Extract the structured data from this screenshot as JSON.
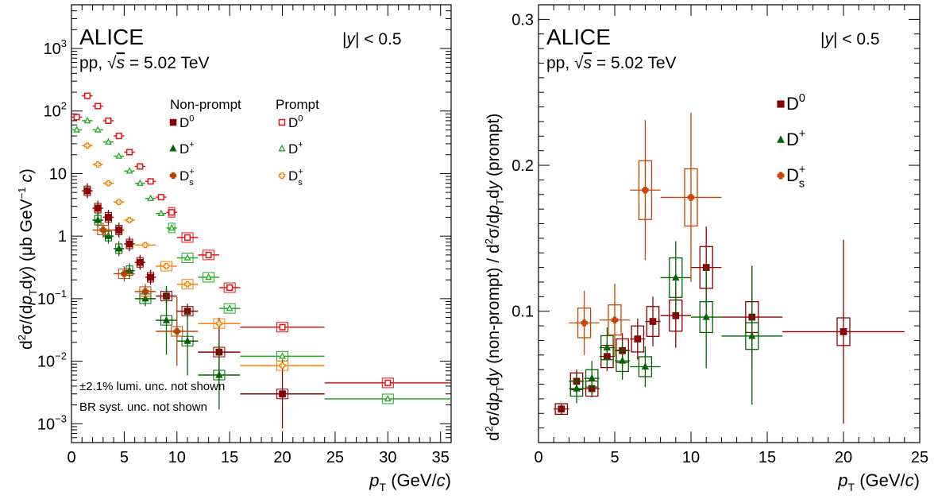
{
  "chart_data": [
    {
      "type": "scatter",
      "log_y": true,
      "xlim": [
        0,
        36
      ],
      "ylim": [
        0.0005,
        5000
      ],
      "x_ticks": [
        0,
        5,
        10,
        15,
        20,
        25,
        30,
        35
      ],
      "y_ticks": [
        {
          "v": 0.001,
          "base": "10",
          "exp": "−3"
        },
        {
          "v": 0.01,
          "base": "10",
          "exp": "−2"
        },
        {
          "v": 0.1,
          "base": "10",
          "exp": "−1"
        },
        {
          "v": 1,
          "base": "1",
          "exp": ""
        },
        {
          "v": 10,
          "base": "10",
          "exp": ""
        },
        {
          "v": 100,
          "base": "10",
          "exp": "2"
        },
        {
          "v": 1000,
          "base": "10",
          "exp": "3"
        }
      ],
      "experiment": "ALICE",
      "system": "pp, √s = 5.02 TeV",
      "rapidity": "|y| < 0.5",
      "legend_headers": [
        "Non-prompt",
        "Prompt"
      ],
      "notes": [
        "±2.1% lumi. unc. not shown",
        "BR syst. unc. not shown"
      ],
      "series": [
        {
          "name": "D0",
          "prompt": false,
          "color": "#8b0000",
          "marker": "square-filled",
          "points": [
            {
              "x": 1.5,
              "y": 5.3,
              "xerr": 0.5
            },
            {
              "x": 2.5,
              "y": 2.8,
              "xerr": 0.5
            },
            {
              "x": 3.5,
              "y": 2.0,
              "xerr": 0.5
            },
            {
              "x": 4.5,
              "y": 1.25,
              "xerr": 0.5
            },
            {
              "x": 5.5,
              "y": 0.75,
              "xerr": 0.5
            },
            {
              "x": 6.5,
              "y": 0.38,
              "xerr": 0.5
            },
            {
              "x": 7.5,
              "y": 0.22,
              "xerr": 0.5
            },
            {
              "x": 9,
              "y": 0.11,
              "xerr": 1
            },
            {
              "x": 11,
              "y": 0.063,
              "xerr": 1
            },
            {
              "x": 14,
              "y": 0.014,
              "xerr": 2
            },
            {
              "x": 20,
              "y": 0.003,
              "xerr": 4
            }
          ]
        },
        {
          "name": "D+",
          "prompt": false,
          "color": "#006400",
          "marker": "triangle-filled",
          "points": [
            {
              "x": 2.5,
              "y": 1.8,
              "xerr": 0.5
            },
            {
              "x": 3.5,
              "y": 1.0,
              "xerr": 0.5
            },
            {
              "x": 4.5,
              "y": 0.63,
              "xerr": 0.5
            },
            {
              "x": 5.5,
              "y": 0.28,
              "xerr": 0.5
            },
            {
              "x": 7,
              "y": 0.1,
              "xerr": 1
            },
            {
              "x": 9,
              "y": 0.045,
              "xerr": 1
            },
            {
              "x": 11,
              "y": 0.021,
              "xerr": 1
            },
            {
              "x": 14,
              "y": 0.006,
              "xerr": 2
            }
          ]
        },
        {
          "name": "Ds+",
          "prompt": false,
          "color": "#b34700",
          "marker": "cross-filled",
          "points": [
            {
              "x": 3,
              "y": 1.25,
              "xerr": 1
            },
            {
              "x": 5,
              "y": 0.25,
              "xerr": 1
            },
            {
              "x": 7,
              "y": 0.13,
              "xerr": 1
            },
            {
              "x": 10,
              "y": 0.03,
              "xerr": 2
            }
          ]
        },
        {
          "name": "D0",
          "prompt": true,
          "color": "#ee1111",
          "marker": "square-open",
          "points": [
            {
              "x": 0.5,
              "y": 80,
              "xerr": 0.5
            },
            {
              "x": 1.5,
              "y": 175,
              "xerr": 0.5
            },
            {
              "x": 2.5,
              "y": 120,
              "xerr": 0.5
            },
            {
              "x": 3.5,
              "y": 70,
              "xerr": 0.5
            },
            {
              "x": 4.5,
              "y": 40,
              "xerr": 0.5
            },
            {
              "x": 5.5,
              "y": 22,
              "xerr": 0.5
            },
            {
              "x": 6.5,
              "y": 13,
              "xerr": 0.5
            },
            {
              "x": 7.5,
              "y": 7.5,
              "xerr": 0.5
            },
            {
              "x": 8.5,
              "y": 4.2,
              "xerr": 0.5
            },
            {
              "x": 9.5,
              "y": 2.4,
              "xerr": 0.5
            },
            {
              "x": 11,
              "y": 0.95,
              "xerr": 1
            },
            {
              "x": 13,
              "y": 0.5,
              "xerr": 1
            },
            {
              "x": 15,
              "y": 0.15,
              "xerr": 1
            },
            {
              "x": 20,
              "y": 0.035,
              "xerr": 4
            },
            {
              "x": 30,
              "y": 0.0045,
              "xerr": 6
            }
          ]
        },
        {
          "name": "D+",
          "prompt": true,
          "color": "#22aa22",
          "marker": "triangle-open",
          "points": [
            {
              "x": 0.5,
              "y": 50,
              "xerr": 0.5
            },
            {
              "x": 1.5,
              "y": 70,
              "xerr": 0.5
            },
            {
              "x": 2.5,
              "y": 50,
              "xerr": 0.5
            },
            {
              "x": 3.5,
              "y": 32,
              "xerr": 0.5
            },
            {
              "x": 4.5,
              "y": 19,
              "xerr": 0.5
            },
            {
              "x": 5.5,
              "y": 11,
              "xerr": 0.5
            },
            {
              "x": 6.5,
              "y": 7,
              "xerr": 0.5
            },
            {
              "x": 7.5,
              "y": 4.0,
              "xerr": 0.5
            },
            {
              "x": 8.5,
              "y": 2.3,
              "xerr": 0.5
            },
            {
              "x": 9.5,
              "y": 1.35,
              "xerr": 0.5
            },
            {
              "x": 11,
              "y": 0.45,
              "xerr": 1
            },
            {
              "x": 13,
              "y": 0.22,
              "xerr": 1
            },
            {
              "x": 15,
              "y": 0.07,
              "xerr": 1
            },
            {
              "x": 20,
              "y": 0.012,
              "xerr": 4
            },
            {
              "x": 30,
              "y": 0.0025,
              "xerr": 6
            }
          ]
        },
        {
          "name": "Ds+",
          "prompt": true,
          "color": "#ff8000",
          "marker": "cross-open",
          "points": [
            {
              "x": 1.5,
              "y": 28,
              "xerr": 0.5
            },
            {
              "x": 2.5,
              "y": 14,
              "xerr": 0.5
            },
            {
              "x": 3.5,
              "y": 7,
              "xerr": 0.5
            },
            {
              "x": 4.5,
              "y": 3.5,
              "xerr": 0.5
            },
            {
              "x": 5.5,
              "y": 1.8,
              "xerr": 0.5
            },
            {
              "x": 7,
              "y": 0.72,
              "xerr": 1
            },
            {
              "x": 9,
              "y": 0.33,
              "xerr": 1
            },
            {
              "x": 11,
              "y": 0.17,
              "xerr": 1
            },
            {
              "x": 14,
              "y": 0.04,
              "xerr": 2
            },
            {
              "x": 20,
              "y": 0.0085,
              "xerr": 4
            }
          ]
        }
      ]
    },
    {
      "type": "scatter",
      "xlim": [
        0,
        25
      ],
      "ylim": [
        0.01,
        0.31
      ],
      "x_ticks": [
        0,
        5,
        10,
        15,
        20,
        25
      ],
      "y_ticks": [
        0.1,
        0.2,
        0.3
      ],
      "experiment": "ALICE",
      "system": "pp, √s = 5.02 TeV",
      "rapidity": "|y| < 0.5",
      "series": [
        {
          "name": "D0",
          "color": "#8b0000",
          "marker": "square-filled",
          "points": [
            {
              "x": 1.5,
              "y": 0.033,
              "xerr": 0.5,
              "err": 0.004
            },
            {
              "x": 2.5,
              "y": 0.052,
              "xerr": 0.5,
              "err": 0.008
            },
            {
              "x": 3.5,
              "y": 0.047,
              "xerr": 0.5,
              "err": 0.006
            },
            {
              "x": 4.5,
              "y": 0.069,
              "xerr": 0.5,
              "err": 0.01
            },
            {
              "x": 5.5,
              "y": 0.073,
              "xerr": 0.5,
              "err": 0.012
            },
            {
              "x": 6.5,
              "y": 0.081,
              "xerr": 0.5,
              "err": 0.014
            },
            {
              "x": 7.5,
              "y": 0.093,
              "xerr": 0.5,
              "err": 0.017
            },
            {
              "x": 9,
              "y": 0.097,
              "xerr": 1,
              "err": 0.022
            },
            {
              "x": 11,
              "y": 0.13,
              "xerr": 1,
              "err": 0.028
            },
            {
              "x": 14,
              "y": 0.096,
              "xerr": 2,
              "err": 0.035
            },
            {
              "x": 20,
              "y": 0.086,
              "xerr": 4,
              "err": 0.063
            }
          ]
        },
        {
          "name": "D+",
          "color": "#006400",
          "marker": "triangle-filled",
          "points": [
            {
              "x": 2.5,
              "y": 0.047,
              "xerr": 0.5,
              "err": 0.01
            },
            {
              "x": 3.5,
              "y": 0.054,
              "xerr": 0.5,
              "err": 0.012
            },
            {
              "x": 4.5,
              "y": 0.075,
              "xerr": 0.5,
              "err": 0.014
            },
            {
              "x": 5.5,
              "y": 0.066,
              "xerr": 0.5,
              "err": 0.013
            },
            {
              "x": 7,
              "y": 0.062,
              "xerr": 1,
              "err": 0.014
            },
            {
              "x": 9,
              "y": 0.123,
              "xerr": 1,
              "err": 0.025
            },
            {
              "x": 11,
              "y": 0.096,
              "xerr": 1,
              "err": 0.035
            },
            {
              "x": 14,
              "y": 0.083,
              "xerr": 2,
              "err": 0.047
            }
          ]
        },
        {
          "name": "Ds+",
          "color": "#cc4400",
          "marker": "cross-filled",
          "points": [
            {
              "x": 3,
              "y": 0.092,
              "xerr": 1,
              "err": 0.022
            },
            {
              "x": 5,
              "y": 0.094,
              "xerr": 1,
              "err": 0.025
            },
            {
              "x": 7,
              "y": 0.183,
              "xerr": 1,
              "err": 0.048
            },
            {
              "x": 10,
              "y": 0.178,
              "xerr": 2,
              "err": 0.058
            }
          ]
        }
      ],
      "legend": [
        "D0",
        "D+",
        "Ds+"
      ]
    }
  ],
  "left_panel": {
    "experiment": "ALICE",
    "system_pre": "pp, ",
    "sqrt_sym": "√",
    "s_sym": "s",
    "system_post": " = 5.02 TeV",
    "rap_pre": "|",
    "rap_y": "y",
    "rap_post": "| < 0.5",
    "header_nonprompt": "Non-prompt",
    "header_prompt": "Prompt",
    "note1": "±2.1% lumi. unc. not shown",
    "note2": "BR syst. unc. not shown"
  },
  "right_panel": {
    "experiment": "ALICE",
    "system_pre": "pp, ",
    "sqrt_sym": "√",
    "s_sym": "s",
    "system_post": " = 5.02 TeV",
    "rap_pre": "|",
    "rap_y": "y",
    "rap_post": "| < 0.5"
  },
  "xlabel": {
    "p": "p",
    "sub": "T",
    "unit_pre": " (GeV/",
    "unit_c": "c",
    "unit_post": ")"
  },
  "species": {
    "d": "D",
    "zero": "0",
    "plus": "+",
    "s": "s"
  }
}
